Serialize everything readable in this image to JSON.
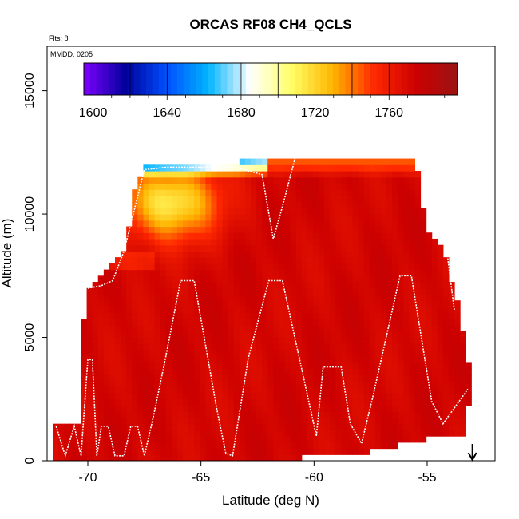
{
  "chart_data": {
    "type": "heatmap",
    "title": "ORCAS RF08 CH4_QCLS",
    "note_flights": "Flts: 8",
    "note_date": "MMDD: 0205",
    "xlabel": "Latitude (deg N)",
    "ylabel": "Altitude (m)",
    "xlim": [
      -71.8,
      -52.0
    ],
    "ylim": [
      0,
      16800
    ],
    "x_ticks": [
      -70,
      -65,
      -60,
      -55
    ],
    "y_ticks": [
      0,
      5000,
      10000,
      15000
    ],
    "grid": false,
    "colorbar": {
      "placement": "top-inside",
      "range": [
        1595,
        1797
      ],
      "tick_values": [
        1600,
        1640,
        1680,
        1720,
        1760
      ],
      "tick_labels": [
        "1600",
        "1640",
        "1680",
        "1720",
        "1760"
      ],
      "colors": [
        "#7f00ff",
        "#00009a",
        "#0050ff",
        "#00b4ff",
        "#ffffff",
        "#ffff66",
        "#ffb400",
        "#ff2800",
        "#cc0000",
        "#9a1414"
      ]
    },
    "marker": {
      "latitude": -53.0,
      "label": "arrow",
      "direction": "down"
    },
    "value_field": {
      "background": 1772,
      "domain_outline": [
        [
          -71.5,
          0
        ],
        [
          -71.5,
          1400
        ],
        [
          -70.4,
          1400
        ],
        [
          -70.4,
          4200
        ],
        [
          -70.0,
          6800
        ],
        [
          -69.2,
          7600
        ],
        [
          -68.3,
          8600
        ],
        [
          -67.9,
          11100
        ],
        [
          -67.5,
          11900
        ],
        [
          -66.0,
          12100
        ],
        [
          -64.0,
          12100
        ],
        [
          -61.5,
          12200
        ],
        [
          -58.5,
          12300
        ],
        [
          -56.2,
          12300
        ],
        [
          -55.5,
          12100
        ],
        [
          -55.0,
          9200
        ],
        [
          -54.3,
          8600
        ],
        [
          -53.9,
          7200
        ],
        [
          -53.5,
          5800
        ],
        [
          -53.3,
          4600
        ],
        [
          -53.1,
          3600
        ],
        [
          -53.1,
          2200
        ],
        [
          -53.4,
          2200
        ],
        [
          -53.4,
          1100
        ],
        [
          -55.0,
          900
        ],
        [
          -56.5,
          600
        ],
        [
          -58.0,
          300
        ],
        [
          -60.0,
          150
        ],
        [
          -63.5,
          0
        ]
      ],
      "low_pocket": {
        "center": [
          -66.4,
          10500
        ],
        "minimum": 1712
      },
      "upper_layer": {
        "altitude": 12000,
        "west_min": 1630,
        "east_value": 1745
      }
    },
    "flight_track": [
      [
        -71.4,
        1400
      ],
      [
        -71.0,
        200
      ],
      [
        -70.6,
        1400
      ],
      [
        -70.3,
        200
      ],
      [
        -70.0,
        4100
      ],
      [
        -69.8,
        4100
      ],
      [
        -69.6,
        200
      ],
      [
        -69.4,
        1400
      ],
      [
        -69.1,
        1400
      ],
      [
        -68.8,
        200
      ],
      [
        -68.4,
        200
      ],
      [
        -68.1,
        1400
      ],
      [
        -67.8,
        1400
      ],
      [
        -67.5,
        200
      ],
      [
        -67.1,
        1800
      ],
      [
        -66.6,
        4000
      ],
      [
        -65.9,
        7300
      ],
      [
        -65.3,
        7300
      ],
      [
        -64.3,
        2100
      ],
      [
        -63.9,
        300
      ],
      [
        -63.6,
        200
      ],
      [
        -62.9,
        4200
      ],
      [
        -62.0,
        7300
      ],
      [
        -61.4,
        7300
      ],
      [
        -59.9,
        1000
      ],
      [
        -59.6,
        3800
      ],
      [
        -58.8,
        3800
      ],
      [
        -58.4,
        1500
      ],
      [
        -57.9,
        700
      ],
      [
        -57.4,
        2600
      ],
      [
        -56.2,
        7500
      ],
      [
        -55.7,
        7500
      ],
      [
        -54.8,
        2400
      ],
      [
        -54.3,
        1500
      ],
      [
        -53.2,
        2900
      ]
    ],
    "flight_track_upper": [
      [
        -71.0,
        6000
      ],
      [
        -70.5,
        6900
      ],
      [
        -69.4,
        7100
      ],
      [
        -68.9,
        7300
      ],
      [
        -68.4,
        8500
      ],
      [
        -67.5,
        11800
      ],
      [
        -66.5,
        11900
      ],
      [
        -63.5,
        11900
      ],
      [
        -62.3,
        11600
      ],
      [
        -61.8,
        9000
      ],
      [
        -61.4,
        10300
      ],
      [
        -60.8,
        12400
      ],
      [
        -58.0,
        12300
      ],
      [
        -55.4,
        12500
      ],
      [
        -54.8,
        10800
      ],
      [
        -54.2,
        9000
      ],
      [
        -53.8,
        6100
      ]
    ]
  }
}
